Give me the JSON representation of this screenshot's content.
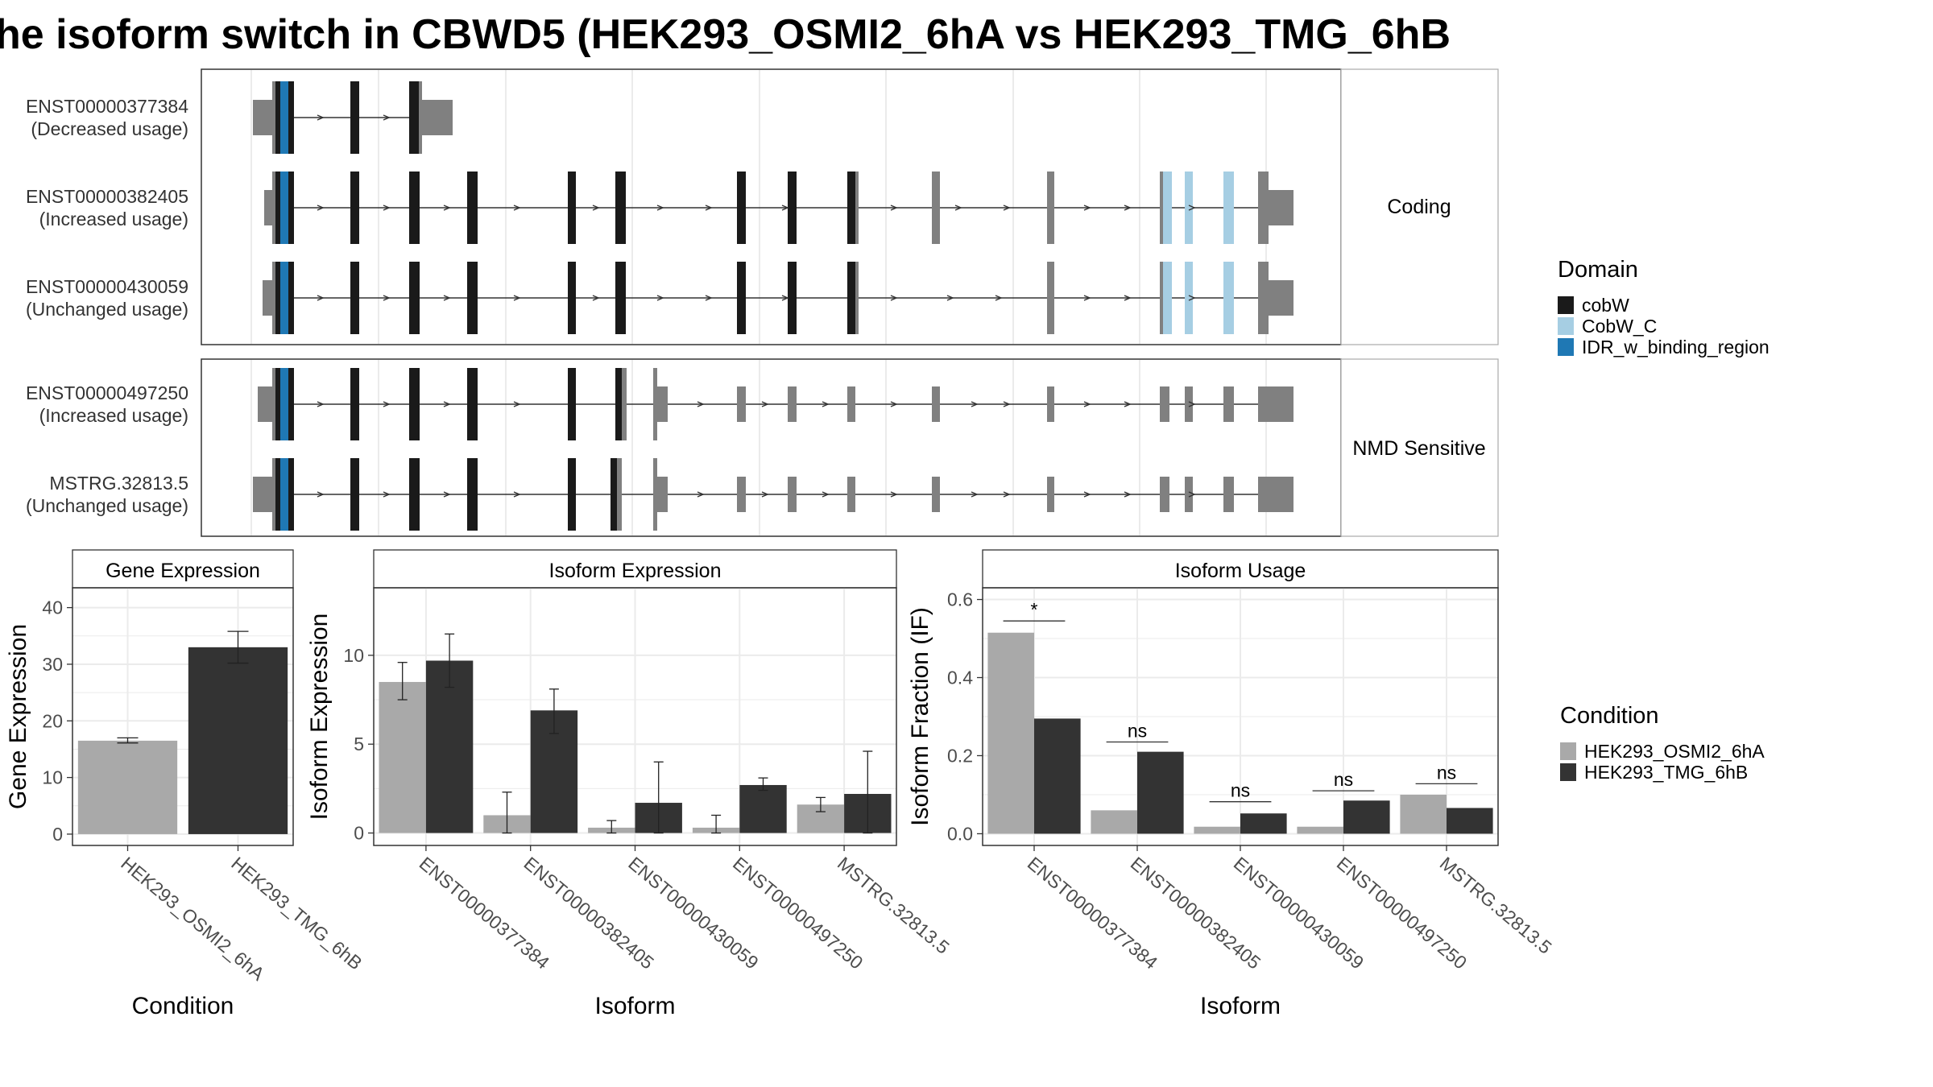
{
  "title": "he isoform switch in CBWD5 (HEK293_OSMI2_6hA vs HEK293_TMG_6hB",
  "colors": {
    "cobW": "#1a1a1a",
    "CobW_C": "#a6cee3",
    "IDR_w_binding_region": "#1f78b4",
    "noncoding": "#808080",
    "condA": "#a9a9a9",
    "condB": "#333333",
    "grid": "#ebebeb",
    "strip": "#ffffff"
  },
  "transcript_panel": {
    "groups": [
      {
        "label": "Coding",
        "transcripts": [
          {
            "id": "ENST00000377384",
            "note": "(Decreased usage)"
          },
          {
            "id": "ENST00000382405",
            "note": "(Increased usage)"
          },
          {
            "id": "ENST00000430059",
            "note": "(Unchanged usage)"
          }
        ]
      },
      {
        "label": "NMD Sensitive",
        "transcripts": [
          {
            "id": "ENST00000497250",
            "note": "(Increased usage)"
          },
          {
            "id": "MSTRG.32813.5",
            "note": "(Unchanged usage)"
          }
        ]
      }
    ]
  },
  "legend_domain": {
    "title": "Domain",
    "items": [
      {
        "name": "cobW",
        "color": "#1a1a1a"
      },
      {
        "name": "CobW_C",
        "color": "#a6cee3"
      },
      {
        "name": "IDR_w_binding_region",
        "color": "#1f78b4"
      }
    ]
  },
  "legend_condition": {
    "title": "Condition",
    "items": [
      {
        "name": "HEK293_OSMI2_6hA",
        "color": "#a9a9a9"
      },
      {
        "name": "HEK293_TMG_6hB",
        "color": "#333333"
      }
    ]
  },
  "chart_data": [
    {
      "type": "bar",
      "title": "Gene Expression",
      "xlabel": "Condition",
      "ylabel": "Gene Expression",
      "categories": [
        "HEK293_OSMI2_6hA",
        "HEK293_TMG_6hB"
      ],
      "values": [
        16.5,
        33.0
      ],
      "error": [
        [
          16.1,
          17.0
        ],
        [
          30.2,
          35.8
        ]
      ],
      "ylim": [
        -2,
        43.5
      ],
      "yticks": [
        0,
        10,
        20,
        30,
        40
      ],
      "grid": true
    },
    {
      "type": "bar",
      "title": "Isoform Expression",
      "xlabel": "Isoform",
      "ylabel": "Isoform Expression",
      "categories": [
        "ENST00000377384",
        "ENST00000382405",
        "ENST00000430059",
        "ENST00000497250",
        "MSTRG.32813.5"
      ],
      "series": [
        {
          "name": "HEK293_OSMI2_6hA",
          "values": [
            8.5,
            1.0,
            0.3,
            0.3,
            1.6
          ],
          "error": [
            [
              7.5,
              9.6
            ],
            [
              0,
              2.3
            ],
            [
              0,
              0.7
            ],
            [
              0,
              1.0
            ],
            [
              1.2,
              2.0
            ]
          ]
        },
        {
          "name": "HEK293_TMG_6hB",
          "values": [
            9.7,
            6.9,
            1.7,
            2.7,
            2.2
          ],
          "error": [
            [
              8.2,
              11.2
            ],
            [
              5.6,
              8.1
            ],
            [
              0,
              4.0
            ],
            [
              2.4,
              3.1
            ],
            [
              0,
              4.6
            ]
          ]
        }
      ],
      "ylim": [
        -0.7,
        13.8
      ],
      "yticks": [
        0,
        5,
        10
      ],
      "grid": true
    },
    {
      "type": "bar",
      "title": "Isoform Usage",
      "xlabel": "Isoform",
      "ylabel": "Isoform Fraction (IF)",
      "categories": [
        "ENST00000377384",
        "ENST00000382405",
        "ENST00000430059",
        "ENST00000497250",
        "MSTRG.32813.5"
      ],
      "series": [
        {
          "name": "HEK293_OSMI2_6hA",
          "values": [
            0.515,
            0.06,
            0.018,
            0.018,
            0.1
          ]
        },
        {
          "name": "HEK293_TMG_6hB",
          "values": [
            0.295,
            0.21,
            0.052,
            0.085,
            0.066
          ]
        }
      ],
      "significance": [
        {
          "label": "*",
          "y": 0.545
        },
        {
          "label": "ns",
          "y": 0.235
        },
        {
          "label": "ns",
          "y": 0.082
        },
        {
          "label": "ns",
          "y": 0.11
        },
        {
          "label": "ns",
          "y": 0.128
        }
      ],
      "ylim": [
        -0.03,
        0.63
      ],
      "yticks": [
        0.0,
        0.2,
        0.4,
        0.6
      ],
      "ytick_labels": [
        "0.0",
        "0.2",
        "0.4",
        "0.6"
      ],
      "grid": true
    }
  ]
}
